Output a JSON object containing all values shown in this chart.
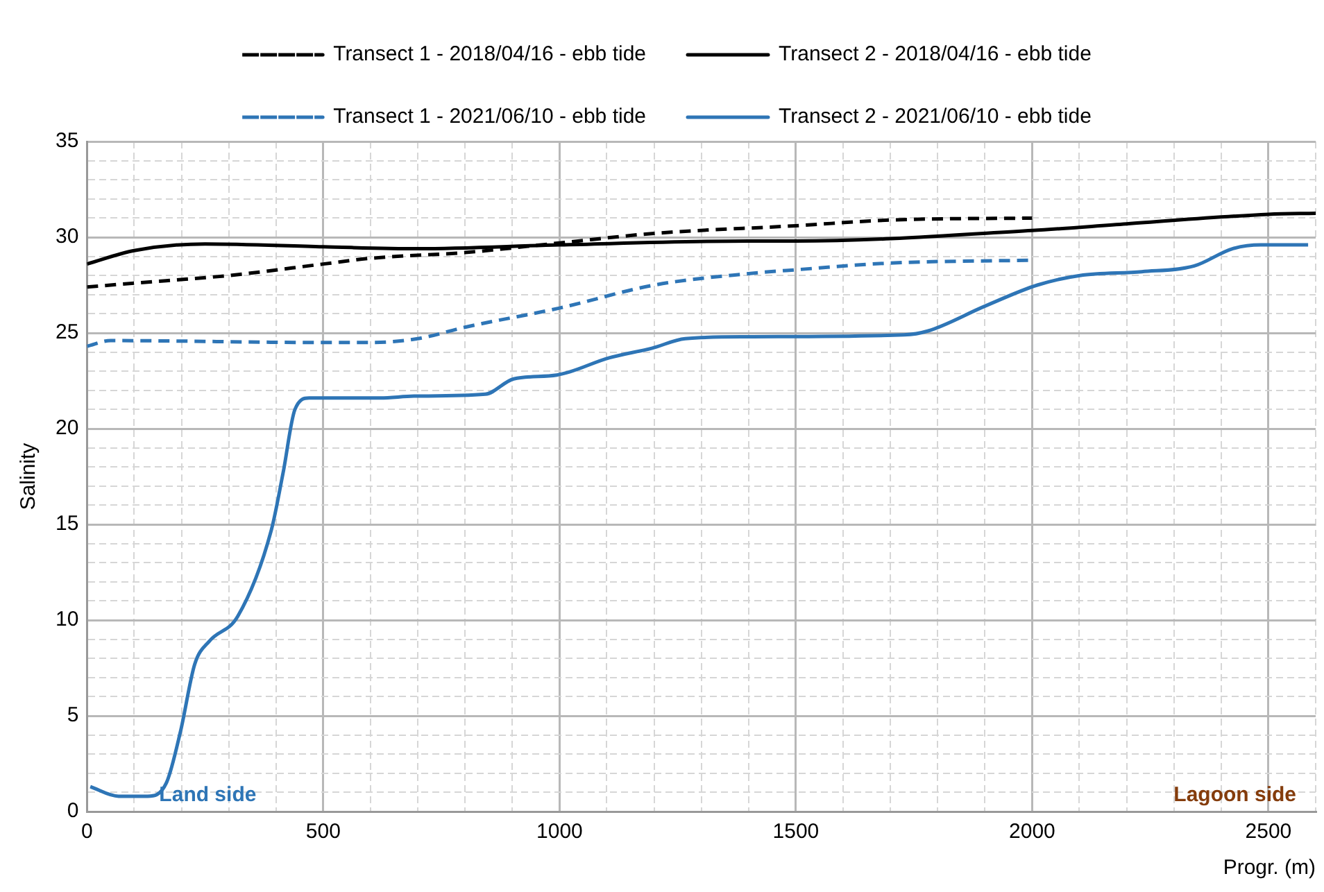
{
  "chart_data": {
    "type": "line",
    "xlabel": "Progr. (m)",
    "ylabel": "Salinity",
    "xlim": [
      0,
      2600
    ],
    "ylim": [
      0,
      35
    ],
    "xticks": [
      0,
      {
        "value": 100,
        "label": null
      },
      {
        "value": 200,
        "label": null
      },
      {
        "value": 300,
        "label": null
      },
      {
        "value": 400,
        "label": null
      },
      500,
      {
        "value": 600,
        "label": null
      },
      {
        "value": 700,
        "label": null
      },
      {
        "value": 800,
        "label": null
      },
      {
        "value": 900,
        "label": null
      },
      1000,
      {
        "value": 1100,
        "label": null
      },
      {
        "value": 1200,
        "label": null
      },
      {
        "value": 1300,
        "label": null
      },
      {
        "value": 1400,
        "label": null
      },
      1500,
      {
        "value": 1600,
        "label": null
      },
      {
        "value": 1700,
        "label": null
      },
      {
        "value": 1800,
        "label": null
      },
      {
        "value": 1900,
        "label": null
      },
      2000,
      {
        "value": 2100,
        "label": null
      },
      {
        "value": 2200,
        "label": null
      },
      {
        "value": 2300,
        "label": null
      },
      {
        "value": 2400,
        "label": null
      },
      2500,
      {
        "value": 2600,
        "label": null
      }
    ],
    "yticks": [
      0,
      {
        "value": 1,
        "label": null
      },
      {
        "value": 2,
        "label": null
      },
      {
        "value": 3,
        "label": null
      },
      {
        "value": 4,
        "label": null
      },
      5,
      {
        "value": 6,
        "label": null
      },
      {
        "value": 7,
        "label": null
      },
      {
        "value": 8,
        "label": null
      },
      {
        "value": 9,
        "label": null
      },
      10,
      {
        "value": 11,
        "label": null
      },
      {
        "value": 12,
        "label": null
      },
      {
        "value": 13,
        "label": null
      },
      {
        "value": 14,
        "label": null
      },
      15,
      {
        "value": 16,
        "label": null
      },
      {
        "value": 17,
        "label": null
      },
      {
        "value": 18,
        "label": null
      },
      {
        "value": 19,
        "label": null
      },
      20,
      {
        "value": 21,
        "label": null
      },
      {
        "value": 22,
        "label": null
      },
      {
        "value": 23,
        "label": null
      },
      {
        "value": 24,
        "label": null
      },
      25,
      {
        "value": 26,
        "label": null
      },
      {
        "value": 27,
        "label": null
      },
      {
        "value": 28,
        "label": null
      },
      {
        "value": 29,
        "label": null
      },
      30,
      {
        "value": 31,
        "label": null
      },
      {
        "value": 32,
        "label": null
      },
      {
        "value": 33,
        "label": null
      },
      {
        "value": 34,
        "label": null
      },
      35
    ],
    "grid": true,
    "legend": "top",
    "marker": "none",
    "series": [
      {
        "name": "Transect 1 - 2018/04/16 - ebb tide",
        "color": "#000000",
        "line_style": "dashed",
        "x": [
          0,
          100,
          300,
          500,
          600,
          800,
          1000,
          1200,
          1500,
          1700,
          2000
        ],
        "values": [
          27.4,
          27.6,
          28.0,
          28.6,
          28.9,
          29.2,
          29.7,
          30.2,
          30.6,
          30.9,
          31.0
        ]
      },
      {
        "name": "Transect 2 - 2018/04/16 - ebb tide",
        "color": "#000000",
        "line_style": "solid",
        "x": [
          0,
          100,
          250,
          500,
          700,
          1000,
          1400,
          1500,
          2000,
          2200,
          2500,
          2600
        ],
        "values": [
          28.6,
          29.3,
          29.65,
          29.5,
          29.4,
          29.6,
          29.8,
          29.8,
          30.35,
          30.7,
          31.2,
          31.25
        ]
      },
      {
        "name": "Transect 1 - 2021/06/10 - ebb tide",
        "color": "#2e75b6",
        "line_style": "dashed",
        "x": [
          0,
          50,
          500,
          600,
          700,
          800,
          1000,
          1200,
          1400,
          1500,
          1700,
          2000
        ],
        "values": [
          24.3,
          24.6,
          24.5,
          24.5,
          24.7,
          25.3,
          26.3,
          27.5,
          28.1,
          28.3,
          28.65,
          28.8
        ]
      },
      {
        "name": "Transect 2 - 2021/06/10 - ebb tide",
        "color": "#2e75b6",
        "line_style": "solid",
        "x": [
          7,
          67,
          128,
          168,
          198,
          228,
          259,
          319,
          390,
          415,
          440,
          470,
          621,
          692,
          843,
          903,
          994,
          1105,
          1195,
          1266,
          1396,
          1729,
          1779,
          1900,
          2011,
          2101,
          2232,
          2343,
          2424,
          2484,
          2584
        ],
        "values": [
          1.3,
          0.8,
          0.8,
          1.5,
          4.2,
          7.7,
          8.9,
          10.2,
          14.7,
          17.7,
          21.0,
          21.6,
          21.6,
          21.7,
          21.8,
          22.6,
          22.8,
          23.7,
          24.2,
          24.7,
          24.8,
          24.9,
          25.1,
          26.4,
          27.5,
          28.0,
          28.2,
          28.5,
          29.4,
          29.6,
          29.6
        ]
      }
    ],
    "annotations": [
      "Land side",
      "Lagoon side"
    ]
  }
}
